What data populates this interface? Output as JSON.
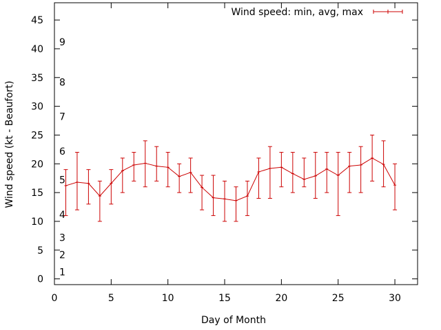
{
  "chart_data": {
    "type": "line",
    "xlabel": "Day of Month",
    "ylabel": "Wind speed (kt - Beaufort)",
    "xlim": [
      0,
      32
    ],
    "ylim": [
      -1,
      48
    ],
    "xticks": [
      0,
      5,
      10,
      15,
      20,
      25,
      30
    ],
    "yticks": [
      0,
      5,
      10,
      15,
      20,
      25,
      30,
      35,
      40,
      45
    ],
    "grid": false,
    "legend_position": "top-right",
    "beaufort_labels": [
      {
        "label": "1",
        "y": 1.2
      },
      {
        "label": "2",
        "y": 4.2
      },
      {
        "label": "3",
        "y": 7.2
      },
      {
        "label": "4",
        "y": 11.2
      },
      {
        "label": "5",
        "y": 17.2
      },
      {
        "label": "6",
        "y": 22.2
      },
      {
        "label": "7",
        "y": 28.2
      },
      {
        "label": "8",
        "y": 34.2
      },
      {
        "label": "9",
        "y": 41.2
      }
    ],
    "series": [
      {
        "name": "Wind speed: min, avg, max",
        "color": "#cc0000",
        "points": [
          {
            "x": 1,
            "min": 11,
            "avg": 16.2,
            "max": 19
          },
          {
            "x": 2,
            "min": 12,
            "avg": 16.8,
            "max": 22
          },
          {
            "x": 3,
            "min": 13,
            "avg": 16.6,
            "max": 19
          },
          {
            "x": 4,
            "min": 10,
            "avg": 14.4,
            "max": 17
          },
          {
            "x": 5,
            "min": 13,
            "avg": 16.6,
            "max": 19
          },
          {
            "x": 6,
            "min": 15,
            "avg": 18.8,
            "max": 21
          },
          {
            "x": 7,
            "min": 17,
            "avg": 19.8,
            "max": 22
          },
          {
            "x": 8,
            "min": 16,
            "avg": 20.1,
            "max": 24
          },
          {
            "x": 9,
            "min": 17,
            "avg": 19.6,
            "max": 23
          },
          {
            "x": 10,
            "min": 16,
            "avg": 19.4,
            "max": 22
          },
          {
            "x": 11,
            "min": 15,
            "avg": 17.8,
            "max": 20
          },
          {
            "x": 12,
            "min": 15,
            "avg": 18.5,
            "max": 21
          },
          {
            "x": 13,
            "min": 12,
            "avg": 15.9,
            "max": 18
          },
          {
            "x": 14,
            "min": 11,
            "avg": 14.1,
            "max": 18
          },
          {
            "x": 15,
            "min": 10,
            "avg": 13.9,
            "max": 17
          },
          {
            "x": 16,
            "min": 10,
            "avg": 13.6,
            "max": 16
          },
          {
            "x": 17,
            "min": 11,
            "avg": 14.4,
            "max": 17
          },
          {
            "x": 18,
            "min": 14,
            "avg": 18.6,
            "max": 21
          },
          {
            "x": 19,
            "min": 14,
            "avg": 19.2,
            "max": 23
          },
          {
            "x": 20,
            "min": 16,
            "avg": 19.4,
            "max": 22
          },
          {
            "x": 21,
            "min": 15,
            "avg": 18.3,
            "max": 22
          },
          {
            "x": 22,
            "min": 16,
            "avg": 17.3,
            "max": 21
          },
          {
            "x": 23,
            "min": 14,
            "avg": 17.9,
            "max": 22
          },
          {
            "x": 24,
            "min": 15,
            "avg": 19.1,
            "max": 22
          },
          {
            "x": 25,
            "min": 11,
            "avg": 18.0,
            "max": 22
          },
          {
            "x": 26,
            "min": 15,
            "avg": 19.6,
            "max": 22
          },
          {
            "x": 27,
            "min": 15,
            "avg": 19.8,
            "max": 23
          },
          {
            "x": 28,
            "min": 17,
            "avg": 21.0,
            "max": 25
          },
          {
            "x": 29,
            "min": 16,
            "avg": 19.9,
            "max": 24
          },
          {
            "x": 30,
            "min": 12,
            "avg": 16.3,
            "max": 20
          }
        ]
      }
    ]
  }
}
